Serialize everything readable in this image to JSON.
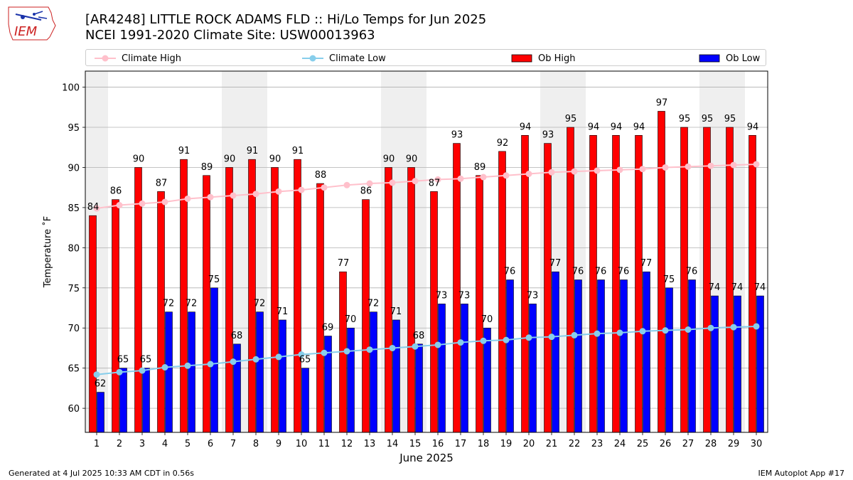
{
  "header": {
    "title_line1": "[AR4248] LITTLE ROCK ADAMS FLD :: Hi/Lo Temps for Jun 2025",
    "title_line2": "NCEI 1991-2020 Climate Site: USW00013963"
  },
  "logo": {
    "text": "IEM",
    "icon": "iowa-state-map-logo"
  },
  "footer": {
    "generated": "Generated at 4 Jul 2025 10:33 AM CDT in 0.56s",
    "app": "IEM Autoplot App #17"
  },
  "colors": {
    "ob_high": "#ff0000",
    "ob_low": "#0000ff",
    "climate_high": "#ffc0cb",
    "climate_low": "#87ceeb",
    "weekend_shade": "#efefef",
    "logo_red": "#cc2222",
    "logo_blue": "#1a33aa"
  },
  "chart_data": {
    "type": "bar",
    "xlabel": "June 2025",
    "ylabel": "Temperature ˚F",
    "ylim": [
      57,
      102
    ],
    "yticks": [
      60,
      65,
      70,
      75,
      80,
      85,
      90,
      95,
      100
    ],
    "grid": "horizontal",
    "legend_placement": "top",
    "shaded_days": [
      1,
      7,
      8,
      14,
      15,
      21,
      22,
      28,
      29
    ],
    "categories": [
      "1",
      "2",
      "3",
      "4",
      "5",
      "6",
      "7",
      "8",
      "9",
      "10",
      "11",
      "12",
      "13",
      "14",
      "15",
      "16",
      "17",
      "18",
      "19",
      "20",
      "21",
      "22",
      "23",
      "24",
      "25",
      "26",
      "27",
      "28",
      "29",
      "30"
    ],
    "series": [
      {
        "name": "Ob High",
        "kind": "bar",
        "values": [
          84,
          86,
          90,
          87,
          91,
          89,
          90,
          91,
          90,
          91,
          88,
          77,
          86,
          90,
          90,
          87,
          93,
          89,
          92,
          94,
          93,
          95,
          94,
          94,
          94,
          97,
          95,
          95,
          95,
          94
        ]
      },
      {
        "name": "Ob Low",
        "kind": "bar",
        "values": [
          62,
          65,
          65,
          72,
          72,
          75,
          68,
          72,
          71,
          65,
          69,
          70,
          72,
          71,
          68,
          73,
          73,
          70,
          76,
          73,
          77,
          76,
          76,
          76,
          77,
          75,
          76,
          74,
          74,
          74
        ]
      },
      {
        "name": "Climate High",
        "kind": "line",
        "values": [
          84.9,
          85.3,
          85.5,
          85.7,
          86.1,
          86.3,
          86.5,
          86.7,
          87.0,
          87.2,
          87.5,
          87.8,
          88.0,
          88.1,
          88.3,
          88.5,
          88.6,
          88.8,
          89.0,
          89.2,
          89.4,
          89.5,
          89.6,
          89.7,
          89.8,
          90.0,
          90.1,
          90.2,
          90.3,
          90.4
        ]
      },
      {
        "name": "Climate Low",
        "kind": "line",
        "values": [
          64.2,
          64.5,
          64.7,
          65.1,
          65.3,
          65.5,
          65.8,
          66.1,
          66.4,
          66.7,
          66.9,
          67.1,
          67.3,
          67.5,
          67.7,
          67.9,
          68.2,
          68.4,
          68.5,
          68.8,
          68.9,
          69.1,
          69.3,
          69.4,
          69.6,
          69.7,
          69.8,
          70.0,
          70.1,
          70.2
        ]
      }
    ]
  }
}
